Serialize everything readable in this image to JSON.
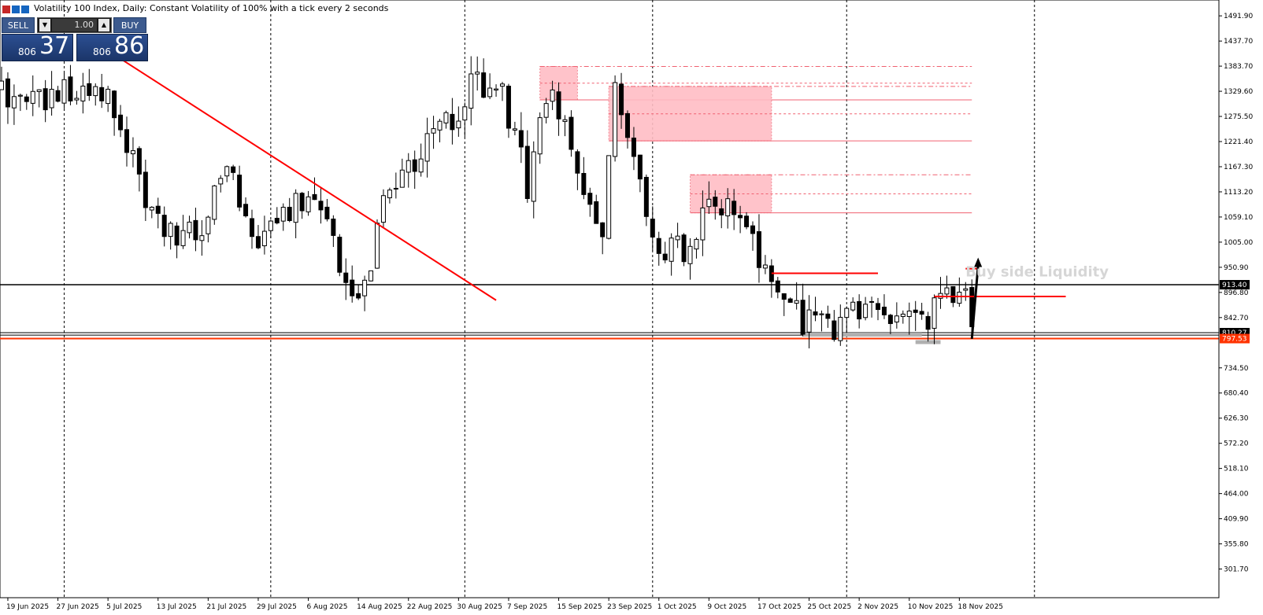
{
  "window": {
    "title": "Volatility 100 Index, Daily:  Constant Volatility of 100% with a tick every 2 seconds"
  },
  "trade_panel": {
    "sell_label": "SELL",
    "buy_label": "BUY",
    "quantity": "1.00",
    "sell_price_prefix": "806",
    "sell_price_big": "37",
    "buy_price_prefix": "806",
    "buy_price_big": "86",
    "colors": {
      "button": "#3c5a8e",
      "price_box": "#1b3569"
    }
  },
  "chart_data": {
    "type": "candlestick",
    "y_ticks": [
      1491.9,
      1437.7,
      1383.7,
      1329.6,
      1275.5,
      1221.4,
      1167.3,
      1113.2,
      1059.1,
      1005.0,
      950.9,
      896.8,
      842.7,
      734.5,
      680.4,
      626.3,
      572.2,
      518.1,
      464.0,
      409.9,
      355.8,
      301.7
    ],
    "y_range": [
      240,
      1526
    ],
    "x_labels": [
      "19 Jun 2025",
      "27 Jun 2025",
      "5 Jul 2025",
      "13 Jul 2025",
      "21 Jul 2025",
      "29 Jul 2025",
      "6 Aug 2025",
      "14 Aug 2025",
      "22 Aug 2025",
      "30 Aug 2025",
      "7 Sep 2025",
      "15 Sep 2025",
      "23 Sep 2025",
      "1 Oct 2025",
      "9 Oct 2025",
      "17 Oct 2025",
      "25 Oct 2025",
      "2 Nov 2025",
      "10 Nov 2025",
      "18 Nov 2025"
    ],
    "label_dates": [
      "2025-06-19",
      "2025-06-27",
      "2025-07-05",
      "2025-07-13",
      "2025-07-21",
      "2025-07-29",
      "2025-08-06",
      "2025-08-14",
      "2025-08-22",
      "2025-08-30",
      "2025-09-07",
      "2025-09-15",
      "2025-09-23",
      "2025-10-01",
      "2025-10-09",
      "2025-10-17",
      "2025-10-25",
      "2025-11-02",
      "2025-11-10",
      "2025-11-18"
    ],
    "date_range": [
      "2025-06-18",
      "2025-12-01"
    ],
    "vertical_separators": [
      "2025-06-28",
      "2025-07-31",
      "2025-08-31",
      "2025-09-30",
      "2025-10-31",
      "2025-11-30"
    ],
    "price_labels": [
      {
        "value": 913.4,
        "text": "913.40",
        "bg": "#000000",
        "fg": "#ffffff"
      },
      {
        "value": 810.27,
        "text": "810.27",
        "bg": "#000000",
        "fg": "#ffffff"
      },
      {
        "value": 797.53,
        "text": "797.53",
        "bg": "#ff3300",
        "fg": "#ffffff"
      }
    ],
    "horizontal_lines": [
      {
        "value": 913.4,
        "color": "#000000",
        "width": 1.5
      },
      {
        "value": 810.27,
        "color": "#000000",
        "width": 1
      },
      {
        "value": 805.0,
        "color": "#000000",
        "width": 1
      },
      {
        "value": 797.53,
        "color": "#ff3300",
        "width": 2
      }
    ],
    "trendline": {
      "from": [
        "2025-07-05",
        1417
      ],
      "to": [
        "2025-09-05",
        880
      ],
      "color": "#ff0000"
    },
    "zones": [
      {
        "x0": "2025-09-12",
        "x1": "2025-09-18",
        "y_top": 1383,
        "y_bot": 1311,
        "color": "#ffbcc4",
        "ext_to": "2025-11-20",
        "lines": [
          {
            "value": 1383,
            "dash": "6,3,2,3"
          },
          {
            "value": 1347,
            "dash": "3,3"
          },
          {
            "value": 1311,
            "dash": "none"
          }
        ]
      },
      {
        "x0": "2025-09-23",
        "x1": "2025-10-19",
        "y_top": 1340,
        "y_bot": 1223,
        "color": "#ffbcc4",
        "ext_to": "2025-11-20",
        "lines": [
          {
            "value": 1340,
            "dash": "6,3,2,3"
          },
          {
            "value": 1281,
            "dash": "3,3"
          },
          {
            "value": 1223,
            "dash": "none"
          }
        ]
      },
      {
        "x0": "2025-10-06",
        "x1": "2025-10-19",
        "y_top": 1150,
        "y_bot": 1068,
        "color": "#ffbcc4",
        "ext_to": "2025-11-20",
        "lines": [
          {
            "value": 1150,
            "dash": "6,3,2,3"
          },
          {
            "value": 1109,
            "dash": "3,3"
          },
          {
            "value": 1068,
            "dash": "none"
          }
        ]
      }
    ],
    "liquidity_lines": [
      {
        "from": "2025-10-19",
        "to": "2025-11-05",
        "value": 938,
        "color": "#ff0000"
      },
      {
        "from": "2025-11-14",
        "to": "2025-12-05",
        "value": 888,
        "color": "#ff0000"
      },
      {
        "from": "2025-11-19",
        "to": "2025-11-21",
        "value": 948,
        "color": "#ff0000"
      }
    ],
    "gray_lines": [
      {
        "from": "2025-10-24",
        "to": "2025-11-12",
        "value": 806,
        "color": "#b0b0b0"
      },
      {
        "from": "2025-11-11",
        "to": "2025-11-15",
        "value": 790,
        "color": "#b0b0b0"
      }
    ],
    "arrow": {
      "from": [
        "2025-11-20",
        797
      ],
      "to": [
        "2025-11-21",
        965
      ],
      "color": "#000000"
    },
    "annotation": {
      "text": "Buy side Liquidity",
      "date": "2025-11-19",
      "value": 931,
      "color": "#d6d6d6"
    },
    "candles_seed": 20250619
  }
}
